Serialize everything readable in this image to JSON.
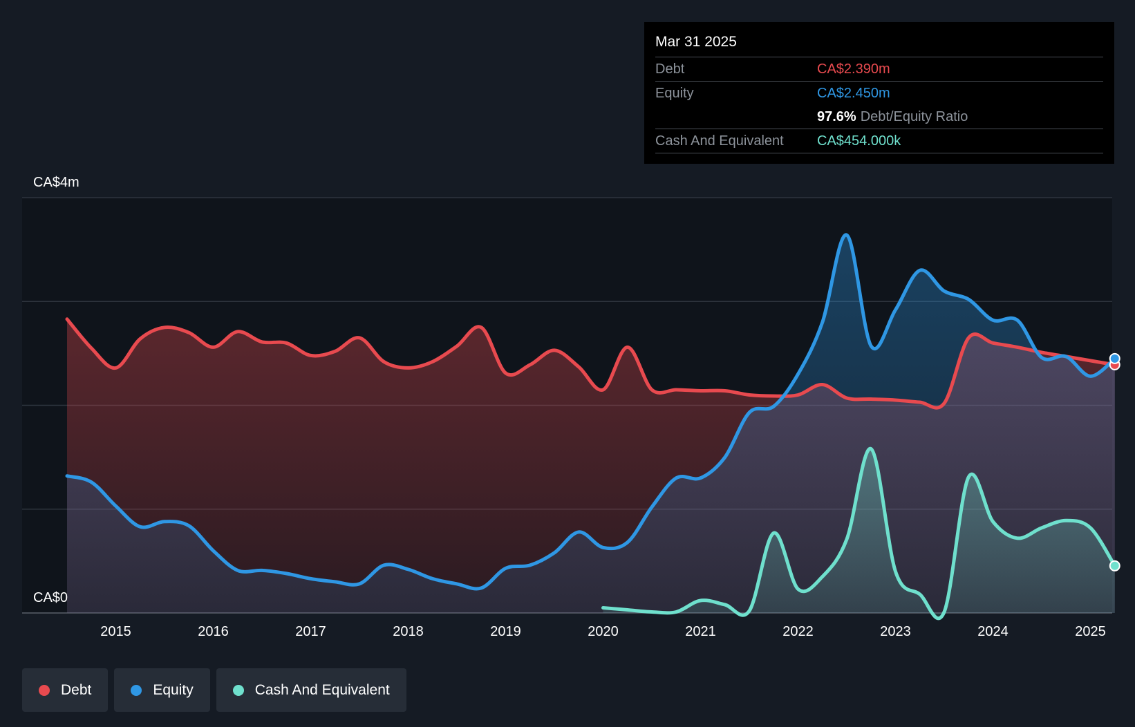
{
  "colors": {
    "debt": "#e84a4f",
    "equity": "#2f97e4",
    "cash": "#6fe0cd",
    "background": "#151b24"
  },
  "tooltip": {
    "date": "Mar 31 2025",
    "debt_label": "Debt",
    "debt_value": "CA$2.390m",
    "equity_label": "Equity",
    "equity_value": "CA$2.450m",
    "ratio_value": "97.6%",
    "ratio_label": "Debt/Equity Ratio",
    "cash_label": "Cash And Equivalent",
    "cash_value": "CA$454.000k"
  },
  "legend": [
    {
      "label": "Debt",
      "color": "#e84a4f"
    },
    {
      "label": "Equity",
      "color": "#2f97e4"
    },
    {
      "label": "Cash And Equivalent",
      "color": "#6fe0cd"
    }
  ],
  "chart_data": {
    "type": "area",
    "title": "",
    "xlabel": "",
    "ylabel": "",
    "ylim": [
      0,
      4
    ],
    "y_unit": "CA$m",
    "y_tick_labels": [
      {
        "value": 4,
        "label": "CA$4m"
      },
      {
        "value": 0,
        "label": "CA$0"
      }
    ],
    "y_gridlines": [
      0,
      1,
      2,
      3,
      4
    ],
    "xlim": [
      2014.5,
      2025.25
    ],
    "x_ticks": [
      2015,
      2016,
      2017,
      2018,
      2019,
      2020,
      2021,
      2022,
      2023,
      2024,
      2025
    ],
    "grid": true,
    "series": [
      {
        "name": "Debt",
        "points": [
          [
            2014.5,
            2.83
          ],
          [
            2014.75,
            2.55
          ],
          [
            2015.0,
            2.36
          ],
          [
            2015.25,
            2.64
          ],
          [
            2015.5,
            2.75
          ],
          [
            2015.75,
            2.7
          ],
          [
            2016.0,
            2.56
          ],
          [
            2016.25,
            2.71
          ],
          [
            2016.5,
            2.61
          ],
          [
            2016.75,
            2.6
          ],
          [
            2017.0,
            2.48
          ],
          [
            2017.25,
            2.52
          ],
          [
            2017.5,
            2.65
          ],
          [
            2017.75,
            2.42
          ],
          [
            2018.0,
            2.36
          ],
          [
            2018.25,
            2.42
          ],
          [
            2018.5,
            2.57
          ],
          [
            2018.75,
            2.75
          ],
          [
            2019.0,
            2.31
          ],
          [
            2019.25,
            2.39
          ],
          [
            2019.5,
            2.53
          ],
          [
            2019.75,
            2.37
          ],
          [
            2020.0,
            2.15
          ],
          [
            2020.25,
            2.56
          ],
          [
            2020.5,
            2.15
          ],
          [
            2020.75,
            2.15
          ],
          [
            2021.0,
            2.14
          ],
          [
            2021.25,
            2.14
          ],
          [
            2021.5,
            2.1
          ],
          [
            2021.75,
            2.09
          ],
          [
            2022.0,
            2.1
          ],
          [
            2022.25,
            2.2
          ],
          [
            2022.5,
            2.07
          ],
          [
            2022.75,
            2.06
          ],
          [
            2023.0,
            2.05
          ],
          [
            2023.25,
            2.03
          ],
          [
            2023.5,
            2.02
          ],
          [
            2023.75,
            2.65
          ],
          [
            2024.0,
            2.6
          ],
          [
            2024.25,
            2.56
          ],
          [
            2024.5,
            2.51
          ],
          [
            2024.75,
            2.47
          ],
          [
            2025.0,
            2.43
          ],
          [
            2025.25,
            2.39
          ]
        ]
      },
      {
        "name": "Equity",
        "points": [
          [
            2014.5,
            1.32
          ],
          [
            2014.75,
            1.26
          ],
          [
            2015.0,
            1.03
          ],
          [
            2015.25,
            0.83
          ],
          [
            2015.5,
            0.88
          ],
          [
            2015.75,
            0.84
          ],
          [
            2016.0,
            0.6
          ],
          [
            2016.25,
            0.41
          ],
          [
            2016.5,
            0.41
          ],
          [
            2016.75,
            0.38
          ],
          [
            2017.0,
            0.33
          ],
          [
            2017.25,
            0.3
          ],
          [
            2017.5,
            0.28
          ],
          [
            2017.75,
            0.46
          ],
          [
            2018.0,
            0.42
          ],
          [
            2018.25,
            0.33
          ],
          [
            2018.5,
            0.28
          ],
          [
            2018.75,
            0.24
          ],
          [
            2019.0,
            0.43
          ],
          [
            2019.25,
            0.46
          ],
          [
            2019.5,
            0.58
          ],
          [
            2019.75,
            0.78
          ],
          [
            2020.0,
            0.63
          ],
          [
            2020.25,
            0.68
          ],
          [
            2020.5,
            1.02
          ],
          [
            2020.75,
            1.3
          ],
          [
            2021.0,
            1.3
          ],
          [
            2021.25,
            1.5
          ],
          [
            2021.5,
            1.93
          ],
          [
            2021.75,
            1.99
          ],
          [
            2022.0,
            2.3
          ],
          [
            2022.25,
            2.8
          ],
          [
            2022.5,
            3.64
          ],
          [
            2022.75,
            2.57
          ],
          [
            2023.0,
            2.92
          ],
          [
            2023.25,
            3.3
          ],
          [
            2023.5,
            3.1
          ],
          [
            2023.75,
            3.02
          ],
          [
            2024.0,
            2.82
          ],
          [
            2024.25,
            2.82
          ],
          [
            2024.5,
            2.46
          ],
          [
            2024.75,
            2.47
          ],
          [
            2025.0,
            2.28
          ],
          [
            2025.25,
            2.45
          ]
        ]
      },
      {
        "name": "Cash And Equivalent",
        "points": [
          [
            2020.0,
            0.05
          ],
          [
            2020.25,
            0.03
          ],
          [
            2020.5,
            0.01
          ],
          [
            2020.75,
            0.01
          ],
          [
            2021.0,
            0.12
          ],
          [
            2021.25,
            0.08
          ],
          [
            2021.5,
            0.02
          ],
          [
            2021.75,
            0.77
          ],
          [
            2022.0,
            0.23
          ],
          [
            2022.25,
            0.35
          ],
          [
            2022.5,
            0.71
          ],
          [
            2022.75,
            1.58
          ],
          [
            2023.0,
            0.4
          ],
          [
            2023.25,
            0.18
          ],
          [
            2023.5,
            0.01
          ],
          [
            2023.75,
            1.31
          ],
          [
            2024.0,
            0.88
          ],
          [
            2024.25,
            0.72
          ],
          [
            2024.5,
            0.82
          ],
          [
            2024.75,
            0.89
          ],
          [
            2025.0,
            0.82
          ],
          [
            2025.25,
            0.454
          ]
        ]
      }
    ]
  }
}
